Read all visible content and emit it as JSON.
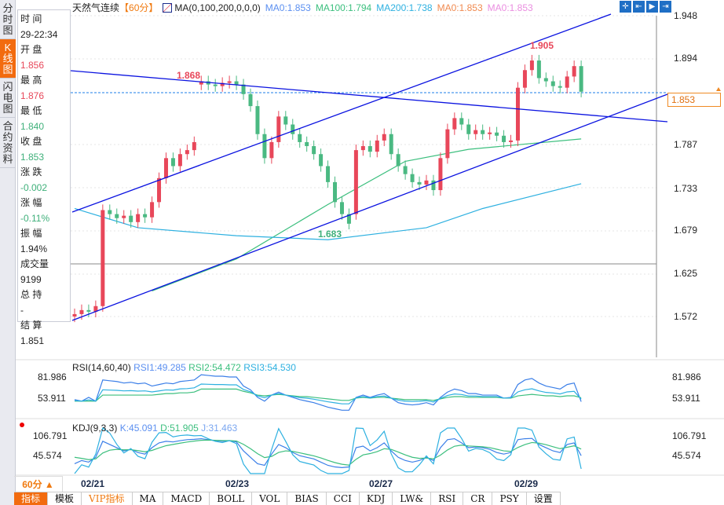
{
  "tabs": [
    {
      "label": "分时图"
    },
    {
      "label": "K线图"
    },
    {
      "label": "闪电图"
    },
    {
      "label": "合约资料"
    }
  ],
  "info": {
    "time_label": "时 间",
    "time": "29-22:34",
    "open_label": "开 盘",
    "open": "1.856",
    "high_label": "最 高",
    "high": "1.876",
    "low_label": "最 低",
    "low": "1.840",
    "close_label": "收 盘",
    "close": "1.853",
    "change_label": "涨 跌",
    "change": "-0.002",
    "pct_label": "涨 幅",
    "pct": "-0.11%",
    "amp_label": "振 幅",
    "amp": "1.94%",
    "vol_label": "成交量",
    "vol": "9199",
    "oi_label": "总 持",
    "oi": "-",
    "settle_label": "结 算",
    "settle": "1.851"
  },
  "header": {
    "title": "天然气连续",
    "period": "【60分】",
    "ma_label": "MA(0,100,200,0,0,0)",
    "ma0": "MA0:1.853",
    "ma100": "MA100:1.794",
    "ma200": "MA200:1.738",
    "ma0b": "MA0:1.853",
    "ma0c": "MA0:1.853"
  },
  "colors": {
    "up": "#e8475a",
    "down": "#4ab982",
    "ma100": "#3cbf7e",
    "ma200": "#2db0e0",
    "trend": "#0a12e0",
    "accent": "#f26b0f"
  },
  "price_axis": [
    "1.948",
    "1.894",
    "1.787",
    "1.733",
    "1.679",
    "1.625",
    "1.572"
  ],
  "current_price": "1.853",
  "annotations": {
    "high1": "1.868",
    "high2": "1.905",
    "low1": "1.683"
  },
  "rsi": {
    "title": "RSI(14,60,40)",
    "rsi1": "RSI1:49.285",
    "rsi2": "RSI2:54.472",
    "rsi3": "RSI3:54.530",
    "ticks": [
      "81.986",
      "53.911"
    ]
  },
  "kdj": {
    "title": "KDJ(9,3,3)",
    "k": "K:45.091",
    "d": "D:51.905",
    "j": "J:31.463",
    "ticks": [
      "106.791",
      "45.574"
    ]
  },
  "dates": [
    "02/21",
    "02/23",
    "02/27",
    "02/29"
  ],
  "period_button": "60分 ▲",
  "toolbar": [
    "指标",
    "模板",
    "VIP指标",
    "MA",
    "MACD",
    "BOLL",
    "VOL",
    "BIAS",
    "CCI",
    "KDJ",
    "LW&",
    "RSI",
    "CR",
    "PSY",
    "设置"
  ],
  "chart_data": {
    "type": "candlestick",
    "ylim": [
      1.572,
      1.948
    ],
    "opens": [
      1.572,
      1.575,
      1.58,
      1.578,
      1.585,
      1.705,
      1.7,
      1.695,
      1.698,
      1.69,
      1.7,
      1.696,
      1.715,
      1.745,
      1.77,
      1.76,
      1.775,
      1.78,
      1.862,
      1.866,
      1.862,
      1.86,
      1.864,
      1.866,
      1.862,
      1.85,
      1.835,
      1.8,
      1.77,
      1.79,
      1.822,
      1.812,
      1.8,
      1.79,
      1.785,
      1.775,
      1.76,
      1.74,
      1.715,
      1.7,
      1.7,
      1.78,
      1.785,
      1.778,
      1.792,
      1.8,
      1.775,
      1.76,
      1.75,
      1.74,
      1.737,
      1.742,
      1.73,
      1.77,
      1.806,
      1.82,
      1.812,
      1.8,
      1.805,
      1.8,
      1.802,
      1.798,
      1.79,
      1.792,
      1.858,
      1.88,
      1.892,
      1.87,
      1.866,
      1.86,
      1.858,
      1.872,
      1.885
    ],
    "closes": [
      1.575,
      1.58,
      1.578,
      1.585,
      1.705,
      1.7,
      1.695,
      1.698,
      1.69,
      1.7,
      1.696,
      1.715,
      1.745,
      1.77,
      1.76,
      1.775,
      1.78,
      1.79,
      1.866,
      1.862,
      1.86,
      1.864,
      1.866,
      1.862,
      1.85,
      1.835,
      1.8,
      1.77,
      1.79,
      1.822,
      1.812,
      1.8,
      1.79,
      1.785,
      1.775,
      1.76,
      1.74,
      1.715,
      1.7,
      1.688,
      1.78,
      1.785,
      1.778,
      1.792,
      1.8,
      1.775,
      1.76,
      1.75,
      1.74,
      1.737,
      1.742,
      1.73,
      1.77,
      1.806,
      1.82,
      1.812,
      1.8,
      1.805,
      1.8,
      1.802,
      1.798,
      1.79,
      1.792,
      1.858,
      1.88,
      1.892,
      1.87,
      1.866,
      1.86,
      1.858,
      1.872,
      1.885,
      1.853
    ],
    "ma100": [
      [
        11,
        1.604
      ],
      [
        23,
        1.644
      ],
      [
        36,
        1.712
      ],
      [
        47,
        1.766
      ],
      [
        56,
        1.781
      ],
      [
        72,
        1.794
      ]
    ],
    "ma200": [
      [
        0,
        1.707
      ],
      [
        9,
        1.683
      ],
      [
        23,
        1.673
      ],
      [
        36,
        1.668
      ],
      [
        50,
        1.683
      ],
      [
        58,
        1.707
      ],
      [
        72,
        1.738
      ]
    ],
    "rsi1": [
      52,
      50,
      55,
      50,
      78,
      77,
      76,
      74,
      75,
      73,
      74,
      70,
      72,
      74,
      73,
      76,
      77,
      78,
      85,
      84,
      83,
      83,
      82,
      82,
      70,
      65,
      55,
      50,
      58,
      62,
      58,
      55,
      52,
      50,
      48,
      45,
      42,
      40,
      38,
      38,
      55,
      58,
      55,
      58,
      60,
      54,
      48,
      46,
      45,
      46,
      48,
      45,
      55,
      62,
      66,
      64,
      60,
      60,
      58,
      58,
      58,
      54,
      55,
      72,
      78,
      80,
      74,
      70,
      68,
      66,
      72,
      74,
      49.285
    ],
    "rsi2": [
      50,
      50,
      50,
      50,
      58,
      58,
      58,
      58,
      58,
      58,
      58,
      58,
      59,
      60,
      60,
      61,
      61,
      62,
      66,
      66,
      66,
      66,
      66,
      66,
      63,
      61,
      58,
      57,
      58,
      59,
      58,
      57,
      56,
      56,
      55,
      54,
      53,
      52,
      51,
      51,
      54,
      55,
      54,
      55,
      55,
      54,
      53,
      52,
      52,
      52,
      52,
      51,
      53,
      55,
      56,
      56,
      55,
      55,
      55,
      55,
      55,
      54,
      54,
      57,
      58,
      59,
      58,
      57,
      57,
      56,
      57,
      57,
      54.472
    ],
    "k": [
      20,
      30,
      25,
      40,
      90,
      80,
      70,
      60,
      65,
      55,
      50,
      70,
      85,
      90,
      88,
      92,
      95,
      96,
      98,
      95,
      92,
      90,
      92,
      88,
      60,
      40,
      20,
      15,
      50,
      80,
      70,
      55,
      45,
      40,
      35,
      25,
      15,
      10,
      8,
      10,
      70,
      75,
      60,
      70,
      85,
      60,
      40,
      30,
      25,
      30,
      40,
      30,
      70,
      95,
      98,
      85,
      70,
      72,
      70,
      65,
      55,
      50,
      55,
      95,
      98,
      99,
      80,
      70,
      60,
      55,
      80,
      85,
      45.091
    ]
  }
}
